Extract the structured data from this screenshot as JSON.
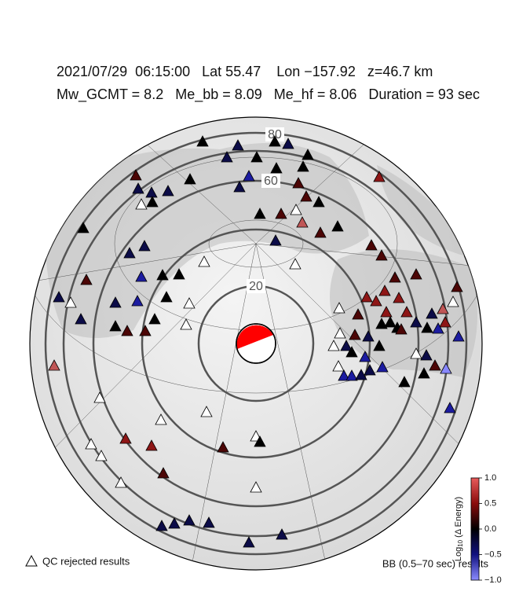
{
  "header": {
    "line1": "2021/07/29  06:15:00   Lat 55.47    Lon −157.92   z=46.7 km",
    "line2": "Mw_GCMT = 8.2   Me_bb = 8.09   Me_hf = 8.06   Duration = 93 sec"
  },
  "rings": {
    "labels": [
      "20",
      "60",
      "80"
    ]
  },
  "colorbar": {
    "title_main": "Log",
    "title_sub": "10",
    "title_rest": " (Δ Energy)",
    "lim": [
      -1,
      1
    ],
    "ticks": [
      {
        "value": 1,
        "label": "1.0"
      },
      0.5,
      {
        "value": 0,
        "label": "0.0"
      },
      {
        "value": -0.5,
        "label": "−0.5"
      },
      {
        "value": -1,
        "label": "−1.0"
      }
    ]
  },
  "legend": {
    "qc": "QC rejected results",
    "bb": "BB (0.5–70 sec) results"
  }
}
